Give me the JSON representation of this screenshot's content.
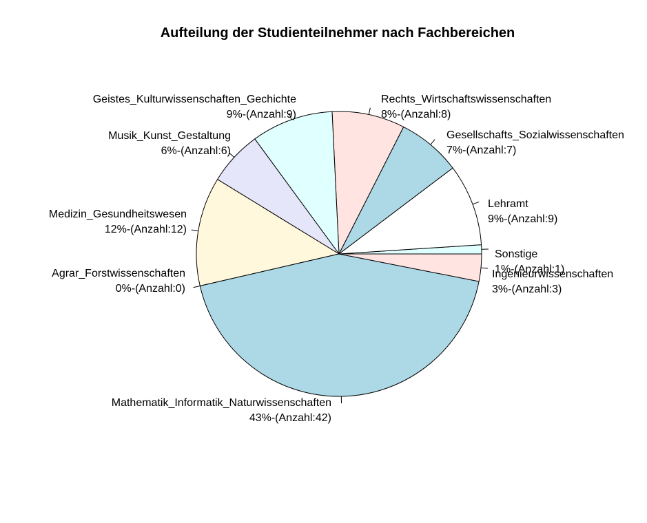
{
  "chart_data": {
    "type": "pie",
    "title": "Aufteilung der Studienteilnehmer nach Fachbereichen",
    "slices": [
      {
        "name": "Sonstige",
        "value": 1,
        "label_line2": "1%-(Anzahl:1)",
        "color": "#E0FFFF"
      },
      {
        "name": "Lehramt",
        "value": 9,
        "label_line2": "9%-(Anzahl:9)",
        "color": "#FFFFFF"
      },
      {
        "name": "Gesellschafts_Sozialwissenschaften",
        "value": 7,
        "label_line2": "7%-(Anzahl:7)",
        "color": "#ADD8E6"
      },
      {
        "name": "Rechts_Wirtschaftswissenschaften",
        "value": 8,
        "label_line2": "8%-(Anzahl:8)",
        "color": "#FFE4E1"
      },
      {
        "name": "Geistes_Kulturwissenschaften_Gechichte",
        "value": 9,
        "label_line2": "9%-(Anzahl:9)",
        "color": "#E0FFFF"
      },
      {
        "name": "Musik_Kunst_Gestaltung",
        "value": 6,
        "label_line2": "6%-(Anzahl:6)",
        "color": "#E6E6FA"
      },
      {
        "name": "Medizin_Gesundheitswesen",
        "value": 12,
        "label_line2": "12%-(Anzahl:12)",
        "color": "#FFF8DC"
      },
      {
        "name": "Agrar_Forstwissenschaften",
        "value": 0,
        "label_line2": "0%-(Anzahl:0)",
        "color": "#FFFFFF"
      },
      {
        "name": "Mathematik_Informatik_Naturwissenschaften",
        "value": 42,
        "label_line2": "43%-(Anzahl:42)",
        "color": "#ADD8E6"
      },
      {
        "name": "Ingenieurwissenschaften",
        "value": 3,
        "label_line2": "3%-(Anzahl:3)",
        "color": "#FFE4E1"
      }
    ],
    "start_angle": "0 degrees (3 o'clock), counter-clockwise",
    "legend": "none"
  }
}
